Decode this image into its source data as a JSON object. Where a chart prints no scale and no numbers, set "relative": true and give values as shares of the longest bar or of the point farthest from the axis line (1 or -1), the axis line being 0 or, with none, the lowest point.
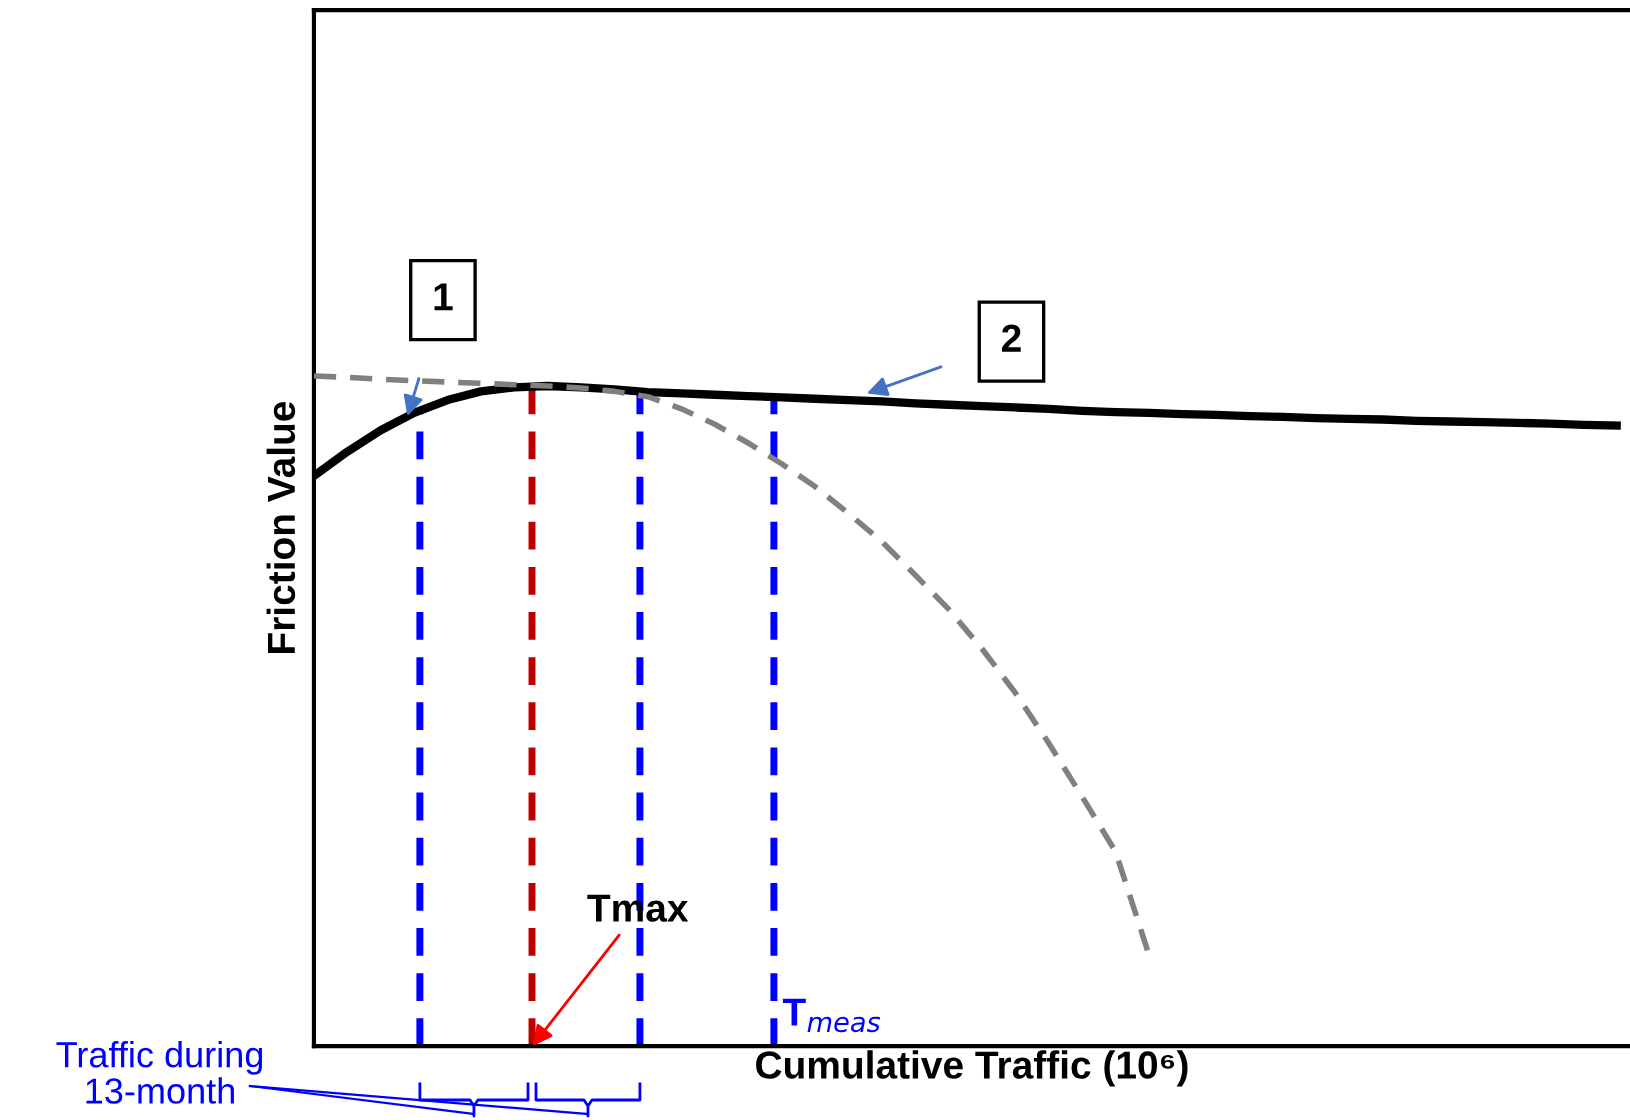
{
  "chart_data": {
    "type": "line",
    "relative": true,
    "xlabel": "Cumulative Traffic (10⁶)",
    "ylabel": "Friction Value",
    "categories": [
      null,
      null,
      null,
      null,
      null,
      null,
      null,
      null,
      null,
      null,
      null,
      null,
      null,
      null,
      null,
      null,
      null,
      null,
      null,
      null,
      null,
      null,
      null,
      null,
      null,
      null,
      null,
      null,
      null,
      null,
      null,
      null,
      null,
      null,
      null,
      null,
      null,
      null,
      null,
      null
    ],
    "legend": false,
    "marker": "none",
    "series": [
      {
        "color": "#000000",
        "line_style": "solid",
        "values": [
          0.851,
          0.887,
          0.919,
          0.945,
          0.964,
          0.977,
          0.983,
          0.985,
          0.983,
          0.98,
          0.976,
          0.974,
          0.972,
          0.97,
          0.968,
          0.966,
          0.964,
          0.962,
          0.959,
          0.957,
          0.955,
          0.953,
          0.951,
          0.948,
          0.946,
          0.945,
          0.943,
          0.942,
          0.94,
          0.939,
          0.937,
          0.936,
          0.935,
          0.933,
          0.932,
          0.931,
          0.93,
          0.929,
          0.927,
          0.926
        ]
      },
      {
        "color": "#808080",
        "line_style": "dashed",
        "values": [
          1.0,
          0.998,
          0.995,
          0.993,
          0.991,
          0.989,
          0.987,
          0.985,
          0.982,
          0.977,
          0.969,
          0.951,
          0.928,
          0.9,
          0.869,
          0.835,
          0.795,
          0.753,
          0.703,
          0.652,
          0.593,
          0.527,
          0.452,
          0.372,
          0.29,
          0.136,
          null,
          null,
          null,
          null,
          null,
          null,
          null,
          null,
          null,
          null,
          null,
          null,
          null,
          null
        ]
      }
    ],
    "annotations": [
      "1",
      "2",
      "Tmax",
      "T$_{meas}$",
      "Traffic during 13-month"
    ]
  }
}
